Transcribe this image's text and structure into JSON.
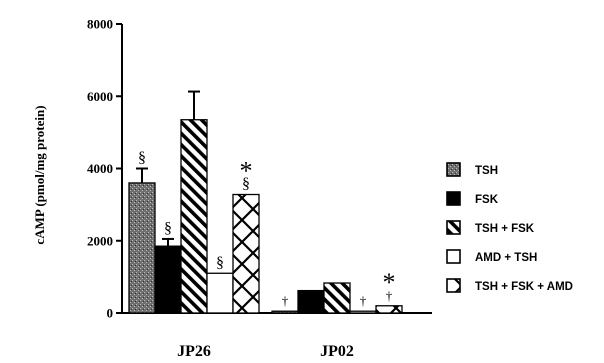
{
  "chart_data": {
    "type": "bar",
    "title": "",
    "xlabel": "",
    "ylabel": "cAMP (pmol/mg protein)",
    "ylim": [
      0,
      8000
    ],
    "yticks": [
      0,
      2000,
      4000,
      6000,
      8000
    ],
    "grid": false,
    "legend_position": "right",
    "categories": [
      "JP26",
      "JP02"
    ],
    "series": [
      {
        "name": "TSH",
        "values": [
          3600,
          50
        ],
        "errors": [
          400,
          0
        ],
        "annotations": [
          "§",
          "†"
        ],
        "pattern": "stipple"
      },
      {
        "name": "FSK",
        "values": [
          1850,
          620
        ],
        "errors": [
          200,
          0
        ],
        "annotations": [
          "§",
          ""
        ],
        "pattern": "solid"
      },
      {
        "name": "TSH + FSK",
        "values": [
          5350,
          830
        ],
        "errors": [
          780,
          0
        ],
        "annotations": [
          "",
          ""
        ],
        "pattern": "diagonal"
      },
      {
        "name": "AMD + TSH",
        "values": [
          1100,
          50
        ],
        "errors": [
          0,
          0
        ],
        "annotations": [
          "§",
          "†"
        ],
        "pattern": "empty"
      },
      {
        "name": "TSH + FSK + AMD",
        "values": [
          3280,
          200
        ],
        "errors": [
          0,
          0
        ],
        "annotations": [
          "* §",
          "* †"
        ],
        "pattern": "crosshatch"
      }
    ]
  }
}
